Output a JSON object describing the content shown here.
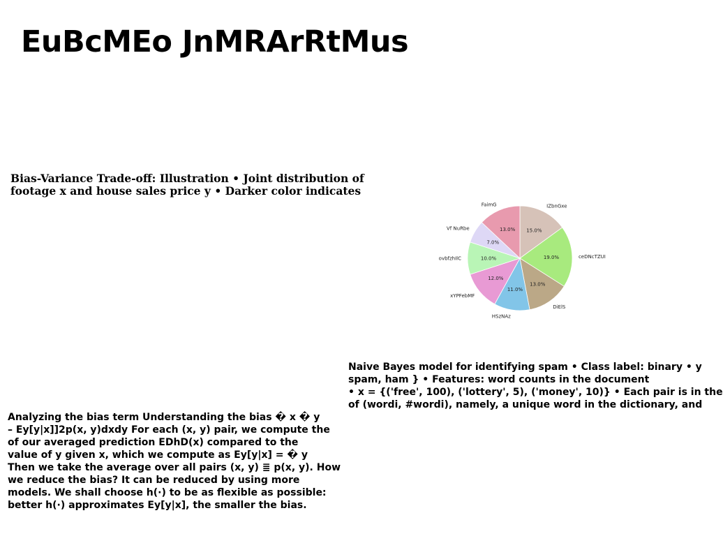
{
  "title": "EuBcMEo JnMRArRtMus",
  "bias_variance": {
    "lines": [
      "Bias-Variance Trade-off: Illustration • Joint distribution of",
      "footage x and house sales price y • Darker color indicates"
    ]
  },
  "naive_bayes": {
    "lines": [
      "Naive Bayes model for identifying spam • Class label: binary • y",
      "spam, ham } • Features: word counts in the document",
      "• x = {('free', 100), ('lottery', 5), ('money', 10)} • Each pair is in the",
      "of (wordi, #wordi), namely, a unique word in the dictionary, and"
    ]
  },
  "bias_term": {
    "lines": [
      "Analyzing the bias term Understanding the bias � x � y",
      "– Ey[y|x]]2p(x, y)dxdy For each (x, y) pair, we compute the",
      "of our averaged prediction EDhD(x) compared to the",
      "value of y given x, which we compute as Ey[y|x] = � y",
      "Then we take the average over all pairs (x, y) ≣ p(x, y). How",
      "we reduce the bias? It can be reduced by using more",
      "models. We shall choose h(·) to be as flexible as possible:",
      "better h(·) approximates Ey[y|x], the smaller the bias."
    ]
  },
  "chart_data": {
    "type": "pie",
    "start_angle_deg": 90,
    "direction": "clockwise",
    "slices": [
      {
        "label": "IZbnGxe",
        "value": 15.0,
        "pct_label": "15.0%",
        "color": "#d6c2b8"
      },
      {
        "label": "ceDNcTZUI",
        "value": 19.0,
        "pct_label": "19.0%",
        "color": "#a8ea7e"
      },
      {
        "label": "DiElS",
        "value": 13.0,
        "pct_label": "13.0%",
        "color": "#bba887"
      },
      {
        "label": "HSzNAz",
        "value": 11.0,
        "pct_label": "11.0%",
        "color": "#82c5e8"
      },
      {
        "label": "xYPFebMF",
        "value": 12.0,
        "pct_label": "12.0%",
        "color": "#e89ad4"
      },
      {
        "label": "ovbfzhIlC",
        "value": 10.0,
        "pct_label": "10.0%",
        "color": "#b9f5b6"
      },
      {
        "label": "Vf NuRbe",
        "value": 7.0,
        "pct_label": "7.0%",
        "color": "#ded8f6"
      },
      {
        "label": "FaimG",
        "value": 13.0,
        "pct_label": "13.0%",
        "color": "#e89aae"
      }
    ]
  }
}
